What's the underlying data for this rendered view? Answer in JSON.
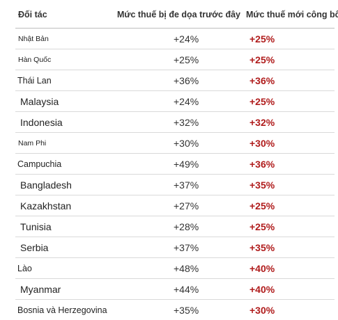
{
  "header": {
    "partner": "Đối tác",
    "old_rate": "Mức thuế bị đe dọa trước đây",
    "new_rate": "Mức thuế mới công bố"
  },
  "rows": [
    {
      "partner": "Nhật Bản",
      "old": "+24%",
      "new": "+25%"
    },
    {
      "partner": "Hàn Quốc",
      "old": "+25%",
      "new": "+25%"
    },
    {
      "partner": "Thái Lan",
      "old": "+36%",
      "new": "+36%"
    },
    {
      "partner": "Malaysia",
      "old": "+24%",
      "new": "+25%"
    },
    {
      "partner": "Indonesia",
      "old": "+32%",
      "new": "+32%"
    },
    {
      "partner": "Nam Phi",
      "old": "+30%",
      "new": "+30%"
    },
    {
      "partner": "Campuchia",
      "old": "+49%",
      "new": "+36%"
    },
    {
      "partner": "Bangladesh",
      "old": "+37%",
      "new": "+35%"
    },
    {
      "partner": "Kazakhstan",
      "old": "+27%",
      "new": "+25%"
    },
    {
      "partner": "Tunisia",
      "old": "+28%",
      "new": "+25%"
    },
    {
      "partner": "Serbia",
      "old": "+37%",
      "new": "+35%"
    },
    {
      "partner": "Lào",
      "old": "+48%",
      "new": "+40%"
    },
    {
      "partner": "Myanmar",
      "old": "+44%",
      "new": "+40%"
    },
    {
      "partner": "Bosnia và Herzegovina",
      "old": "+35%",
      "new": "+30%"
    }
  ],
  "colors": {
    "new_rate_text": "#b01c1c",
    "divider": "#d9d9d9"
  }
}
